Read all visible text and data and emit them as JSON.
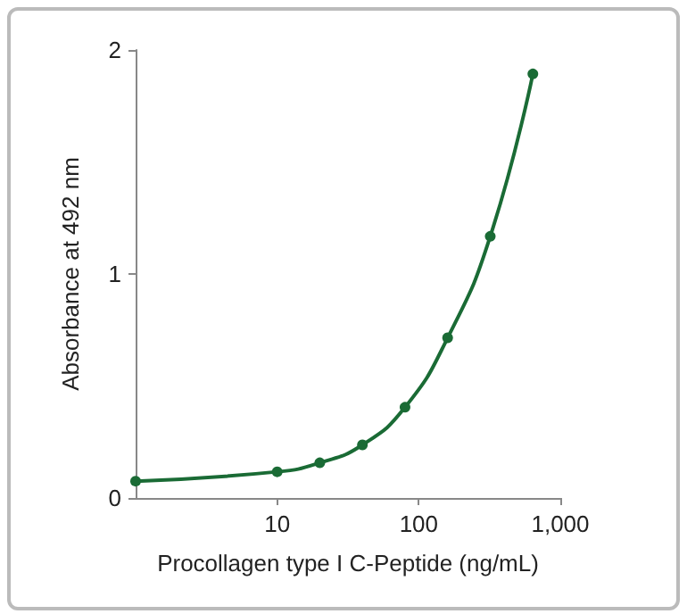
{
  "chart_data": {
    "type": "line",
    "xlabel": "Procollagen type I C-Peptide (ng/mL)",
    "ylabel": "Absorbance at 492 nm",
    "x": [
      1,
      10,
      20,
      40,
      80,
      160,
      320,
      640
    ],
    "series": [
      {
        "color": "#1a6b35",
        "values": [
          0.075,
          0.117,
          0.157,
          0.237,
          0.405,
          0.715,
          1.168,
          1.893
        ]
      }
    ],
    "log": "x",
    "xlim": [
      1,
      1000
    ],
    "xticks": [
      10,
      100,
      {
        "value": 1000,
        "label": "1,000"
      }
    ],
    "ylim": [
      0,
      2
    ],
    "yticks": [
      0,
      1,
      2
    ],
    "grid": false,
    "marker": "circle",
    "line_style": "solid"
  }
}
